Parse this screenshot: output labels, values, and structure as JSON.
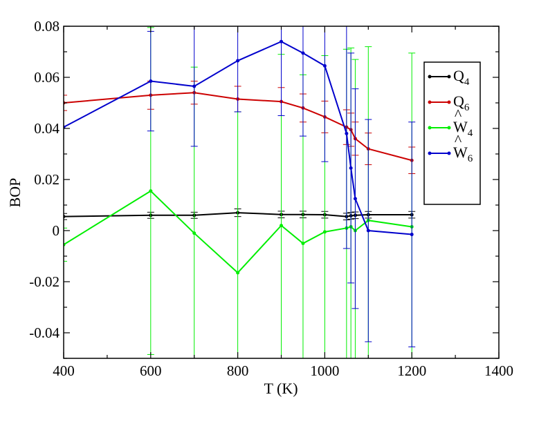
{
  "chart_data": {
    "type": "line",
    "title": "",
    "xlabel": "T (K)",
    "ylabel": "BOP",
    "xlim": [
      400,
      1400
    ],
    "ylim": [
      -0.05,
      0.08
    ],
    "xticks": [
      400,
      600,
      800,
      1000,
      1200,
      1400
    ],
    "xtick_labels": [
      "400",
      "600",
      "800",
      "1000",
      "1200",
      "1400"
    ],
    "yticks": [
      -0.04,
      -0.02,
      0,
      0.02,
      0.04,
      0.06,
      0.08
    ],
    "ytick_labels": [
      "-0.04",
      "-0.02",
      "0",
      "0.02",
      "0.04",
      "0.06",
      "0.08"
    ],
    "grid": false,
    "legend_position": "upper-right",
    "x": [
      400,
      600,
      700,
      800,
      900,
      950,
      1000,
      1050,
      1060,
      1070,
      1100,
      1200
    ],
    "series": [
      {
        "key": "q4",
        "name": "Q4",
        "legend_base": "Q",
        "legend_sub": "4",
        "legend_hat": false,
        "color": "#000000",
        "values": [
          0.0055,
          0.006,
          0.006,
          0.007,
          0.0063,
          0.0063,
          0.0062,
          0.0055,
          0.0058,
          0.006,
          0.0062,
          0.0062
        ],
        "errors": [
          0.0012,
          0.0012,
          0.0012,
          0.0015,
          0.0013,
          0.0013,
          0.0013,
          0.0013,
          0.0013,
          0.0013,
          0.0013,
          0.0013
        ]
      },
      {
        "key": "q6",
        "name": "Q6",
        "legend_base": "Q",
        "legend_sub": "6",
        "legend_hat": false,
        "color": "#cc0000",
        "values": [
          0.05,
          0.053,
          0.054,
          0.0515,
          0.0505,
          0.048,
          0.0445,
          0.0405,
          0.0395,
          0.036,
          0.032,
          0.0275
        ],
        "errors": [
          0.003,
          0.0055,
          0.0045,
          0.005,
          0.0055,
          0.0055,
          0.0062,
          0.0068,
          0.0065,
          0.0065,
          0.0062,
          0.0052
        ]
      },
      {
        "key": "w4",
        "name": "W4",
        "legend_base": "W",
        "legend_sub": "4",
        "legend_hat": true,
        "color": "#00ee00",
        "values": [
          -0.0055,
          0.0155,
          -0.001,
          -0.0165,
          0.002,
          -0.005,
          -0.0005,
          0.001,
          0.0015,
          0,
          0.004,
          0.0015
        ],
        "errors": [
          0.0065,
          0.064,
          0.065,
          0.063,
          0.067,
          0.066,
          0.069,
          0.07,
          0.07,
          0.067,
          0.068,
          0.068
        ]
      },
      {
        "key": "w6",
        "name": "W6",
        "legend_base": "W",
        "legend_sub": "6",
        "legend_hat": true,
        "color": "#0000cc",
        "values": [
          0.0405,
          0.0585,
          0.0565,
          0.0665,
          0.074,
          0.0695,
          0.0645,
          0.038,
          0.0245,
          0.0125,
          0,
          -0.0015
        ],
        "errors": [
          0,
          0.0195,
          0.0235,
          0.02,
          0.029,
          0.0325,
          0.0375,
          0.045,
          0.045,
          0.043,
          0.0435,
          0.044
        ]
      }
    ]
  }
}
